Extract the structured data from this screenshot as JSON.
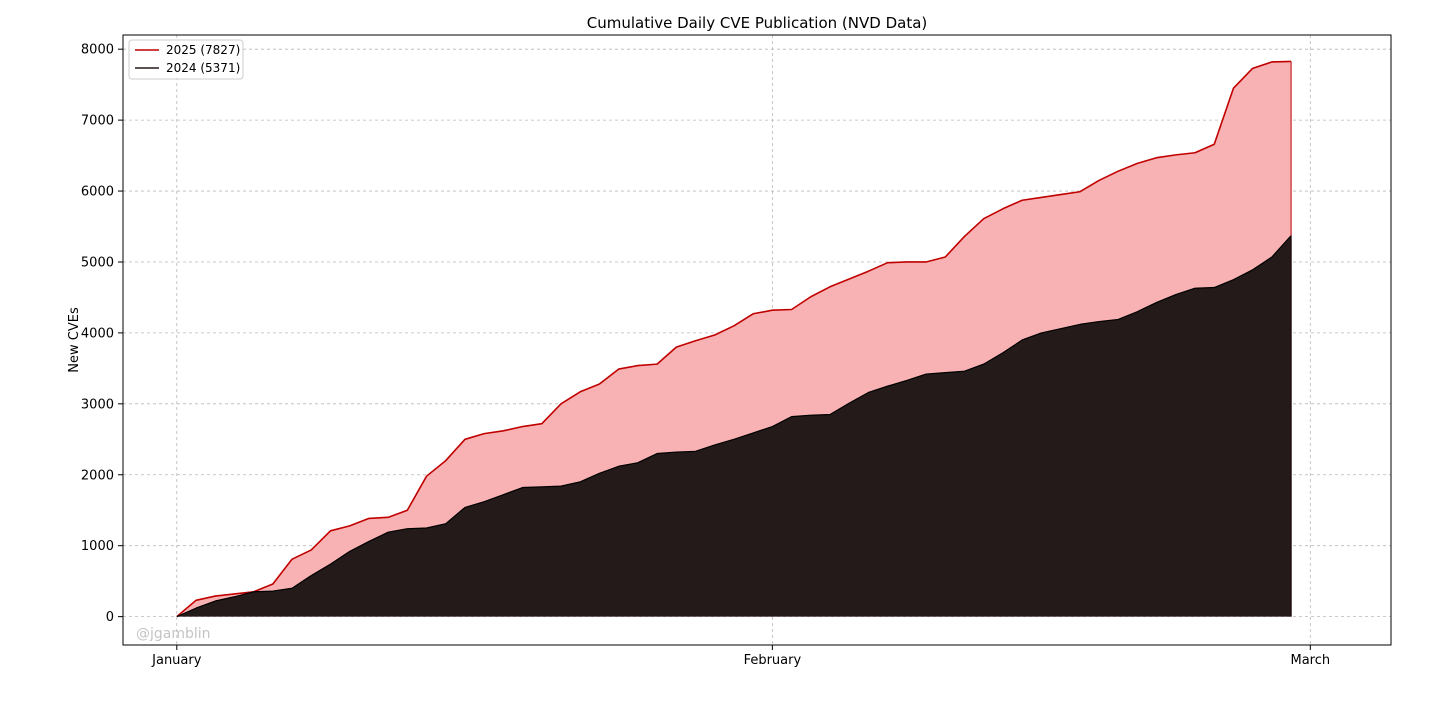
{
  "chart_data": {
    "type": "area",
    "title": "Cumulative Daily CVE Publication (NVD Data)",
    "xlabel": "",
    "ylabel": "New CVEs",
    "ylim": [
      -400,
      8200
    ],
    "yticks": [
      0,
      1000,
      2000,
      3000,
      4000,
      5000,
      6000,
      7000,
      8000
    ],
    "x_unit": "day of year",
    "xlim": [
      -2.8,
      63.2
    ],
    "xticks": [
      {
        "label": "January",
        "value": 0
      },
      {
        "label": "February",
        "value": 31
      },
      {
        "label": "March",
        "value": 59
      }
    ],
    "grid": true,
    "legend_position": "upper-left",
    "watermark": "@jgamblin",
    "colors": {
      "series_2025_line": "#c00000",
      "series_2025_fill": "#f9b2b3",
      "series_2024_fill": "#231a19",
      "grid": "#b8b8b8"
    },
    "series": [
      {
        "name": "2025 (7827)",
        "x": [
          0,
          1,
          2,
          3,
          4,
          5,
          6,
          7,
          8,
          9,
          10,
          11,
          12,
          13,
          14,
          15,
          16,
          17,
          18,
          19,
          20,
          21,
          22,
          23,
          24,
          25,
          26,
          27,
          28,
          29,
          30,
          31,
          32,
          33,
          34,
          35,
          36,
          37,
          38,
          39,
          40,
          41,
          42,
          43,
          44,
          45,
          46,
          47,
          48,
          49,
          50,
          51,
          52,
          53,
          54,
          55,
          56,
          57,
          58
        ],
        "values": [
          0,
          230,
          290,
          320,
          350,
          460,
          810,
          940,
          1210,
          1280,
          1385,
          1400,
          1500,
          1980,
          2200,
          2500,
          2580,
          2620,
          2680,
          2720,
          3000,
          3170,
          3280,
          3490,
          3540,
          3560,
          3800,
          3890,
          3970,
          4100,
          4270,
          4320,
          4330,
          4510,
          4650,
          4760,
          4870,
          4990,
          5000,
          5000,
          5070,
          5360,
          5610,
          5750,
          5870,
          5910,
          5950,
          5990,
          6150,
          6280,
          6390,
          6470,
          6510,
          6540,
          6660,
          7450,
          7730,
          7820,
          7827
        ]
      },
      {
        "name": "2024 (5371)",
        "x": [
          0,
          1,
          2,
          3,
          4,
          5,
          6,
          7,
          8,
          9,
          10,
          11,
          12,
          13,
          14,
          15,
          16,
          17,
          18,
          19,
          20,
          21,
          22,
          23,
          24,
          25,
          26,
          27,
          28,
          29,
          30,
          31,
          32,
          33,
          34,
          35,
          36,
          37,
          38,
          39,
          40,
          41,
          42,
          43,
          44,
          45,
          46,
          47,
          48,
          49,
          50,
          51,
          52,
          53,
          54,
          55,
          56,
          57,
          58
        ],
        "values": [
          0,
          120,
          220,
          280,
          350,
          360,
          400,
          580,
          740,
          920,
          1060,
          1190,
          1240,
          1250,
          1310,
          1540,
          1620,
          1720,
          1820,
          1830,
          1840,
          1900,
          2020,
          2120,
          2170,
          2300,
          2320,
          2330,
          2420,
          2500,
          2590,
          2680,
          2820,
          2840,
          2850,
          3010,
          3160,
          3250,
          3330,
          3420,
          3440,
          3460,
          3560,
          3720,
          3900,
          4000,
          4060,
          4120,
          4160,
          4190,
          4300,
          4430,
          4540,
          4630,
          4640,
          4750,
          4890,
          5070,
          5371
        ]
      }
    ]
  }
}
